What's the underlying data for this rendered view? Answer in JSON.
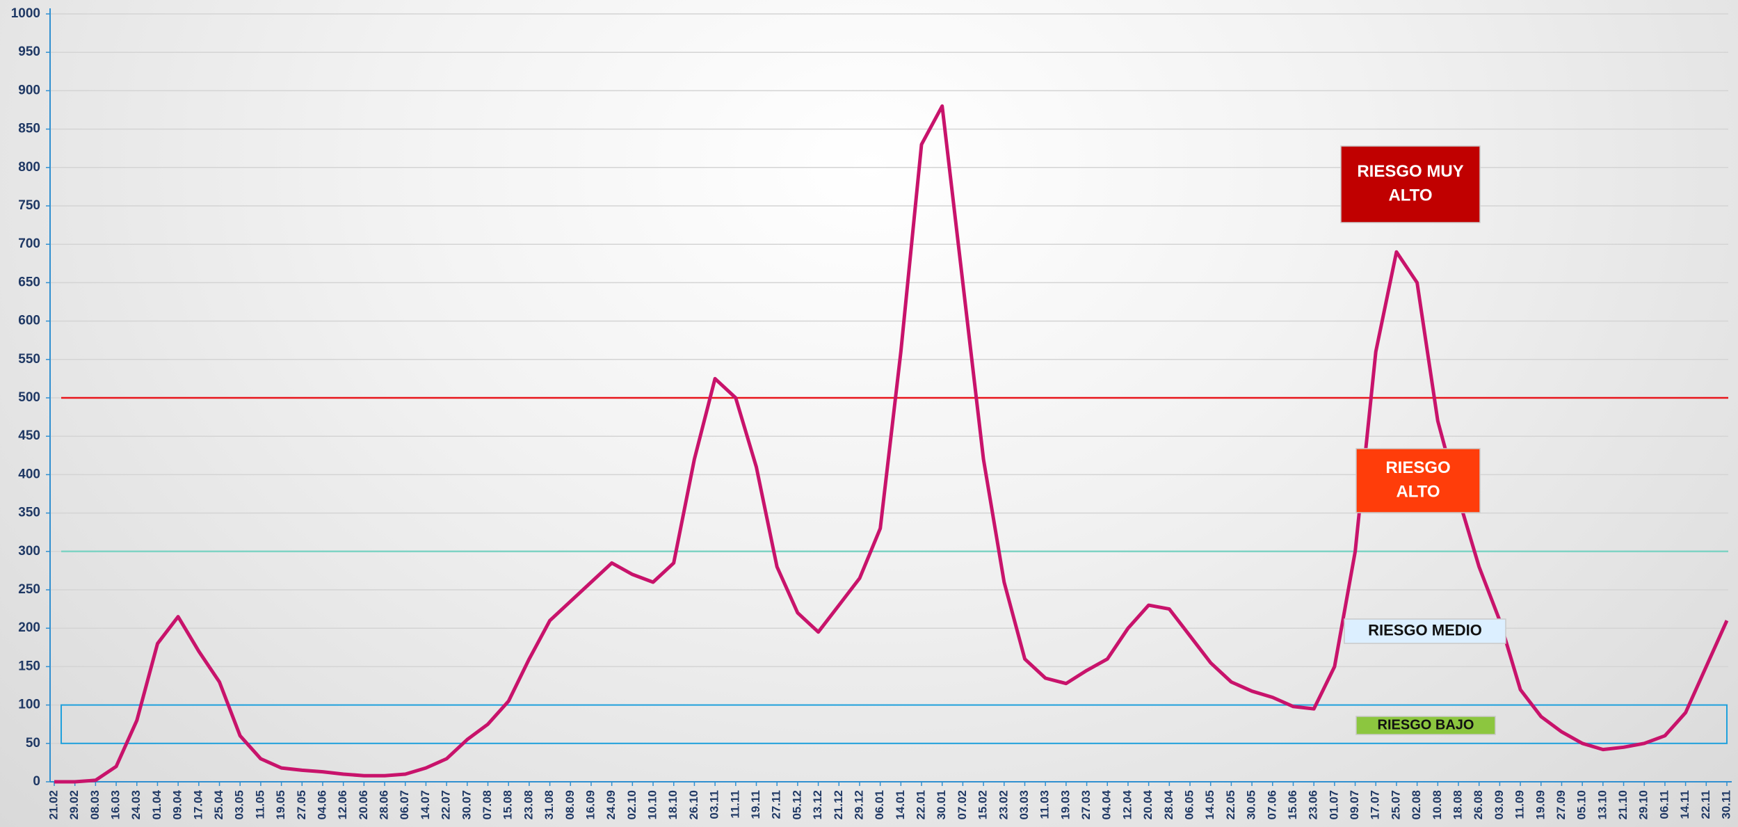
{
  "chart_data": {
    "type": "line",
    "categories": [
      "21.02",
      "29.02",
      "08.03",
      "16.03",
      "24.03",
      "01.04",
      "09.04",
      "17.04",
      "25.04",
      "03.05",
      "11.05",
      "19.05",
      "27.05",
      "04.06",
      "12.06",
      "20.06",
      "28.06",
      "06.07",
      "14.07",
      "22.07",
      "30.07",
      "07.08",
      "15.08",
      "23.08",
      "31.08",
      "08.09",
      "16.09",
      "24.09",
      "02.10",
      "10.10",
      "18.10",
      "26.10",
      "03.11",
      "11.11",
      "19.11",
      "27.11",
      "05.12",
      "13.12",
      "21.12",
      "29.12",
      "06.01",
      "14.01",
      "22.01",
      "30.01",
      "07.02",
      "15.02",
      "23.02",
      "03.03",
      "11.03",
      "19.03",
      "27.03",
      "04.04",
      "12.04",
      "20.04",
      "28.04",
      "06.05",
      "14.05",
      "22.05",
      "30.05",
      "07.06",
      "15.06",
      "23.06",
      "01.07",
      "09.07",
      "17.07",
      "25.07",
      "02.08",
      "10.08",
      "18.08",
      "26.08",
      "03.09",
      "11.09",
      "19.09",
      "27.09",
      "05.10",
      "13.10",
      "21.10",
      "29.10",
      "06.11",
      "14.11",
      "22.11",
      "30.11"
    ],
    "values": [
      0,
      0,
      2,
      20,
      80,
      180,
      215,
      170,
      130,
      60,
      30,
      18,
      15,
      13,
      10,
      8,
      8,
      10,
      18,
      30,
      55,
      75,
      105,
      160,
      210,
      235,
      260,
      285,
      270,
      260,
      285,
      420,
      525,
      500,
      410,
      280,
      220,
      195,
      230,
      265,
      330,
      560,
      830,
      880,
      650,
      420,
      260,
      160,
      135,
      128,
      145,
      160,
      200,
      230,
      225,
      190,
      155,
      130,
      118,
      110,
      98,
      95,
      150,
      300,
      560,
      690,
      650,
      470,
      370,
      280,
      210,
      120,
      85,
      65,
      50,
      42,
      45,
      50,
      60,
      90,
      150,
      210
    ],
    "color": "#c8136b",
    "ylim": [
      0,
      1000
    ],
    "yticks": [
      0,
      50,
      100,
      150,
      200,
      250,
      300,
      350,
      400,
      450,
      500,
      550,
      600,
      650,
      700,
      750,
      800,
      850,
      900,
      950,
      1000
    ],
    "grid": true,
    "thresholds": [
      {
        "value": 500,
        "color": "#e8151b"
      },
      {
        "value": 300,
        "color": "#7fd3c4"
      }
    ],
    "band": {
      "range": [
        50,
        100
      ],
      "color": "#1ea0dc"
    },
    "annotations": [
      {
        "lines": [
          "RIESGO MUY",
          "ALTO"
        ],
        "fill": "#c00000",
        "text_color": "#ffffff"
      },
      {
        "lines": [
          "RIESGO",
          "ALTO"
        ],
        "fill": "#ff3d0a",
        "text_color": "#ffffff"
      },
      {
        "lines": [
          "RIESGO MEDIO"
        ],
        "fill": "#dcefff",
        "text_color": "#111111"
      },
      {
        "lines": [
          "RIESGO BAJO"
        ],
        "fill": "#8cc63f",
        "text_color": "#111111"
      }
    ]
  }
}
